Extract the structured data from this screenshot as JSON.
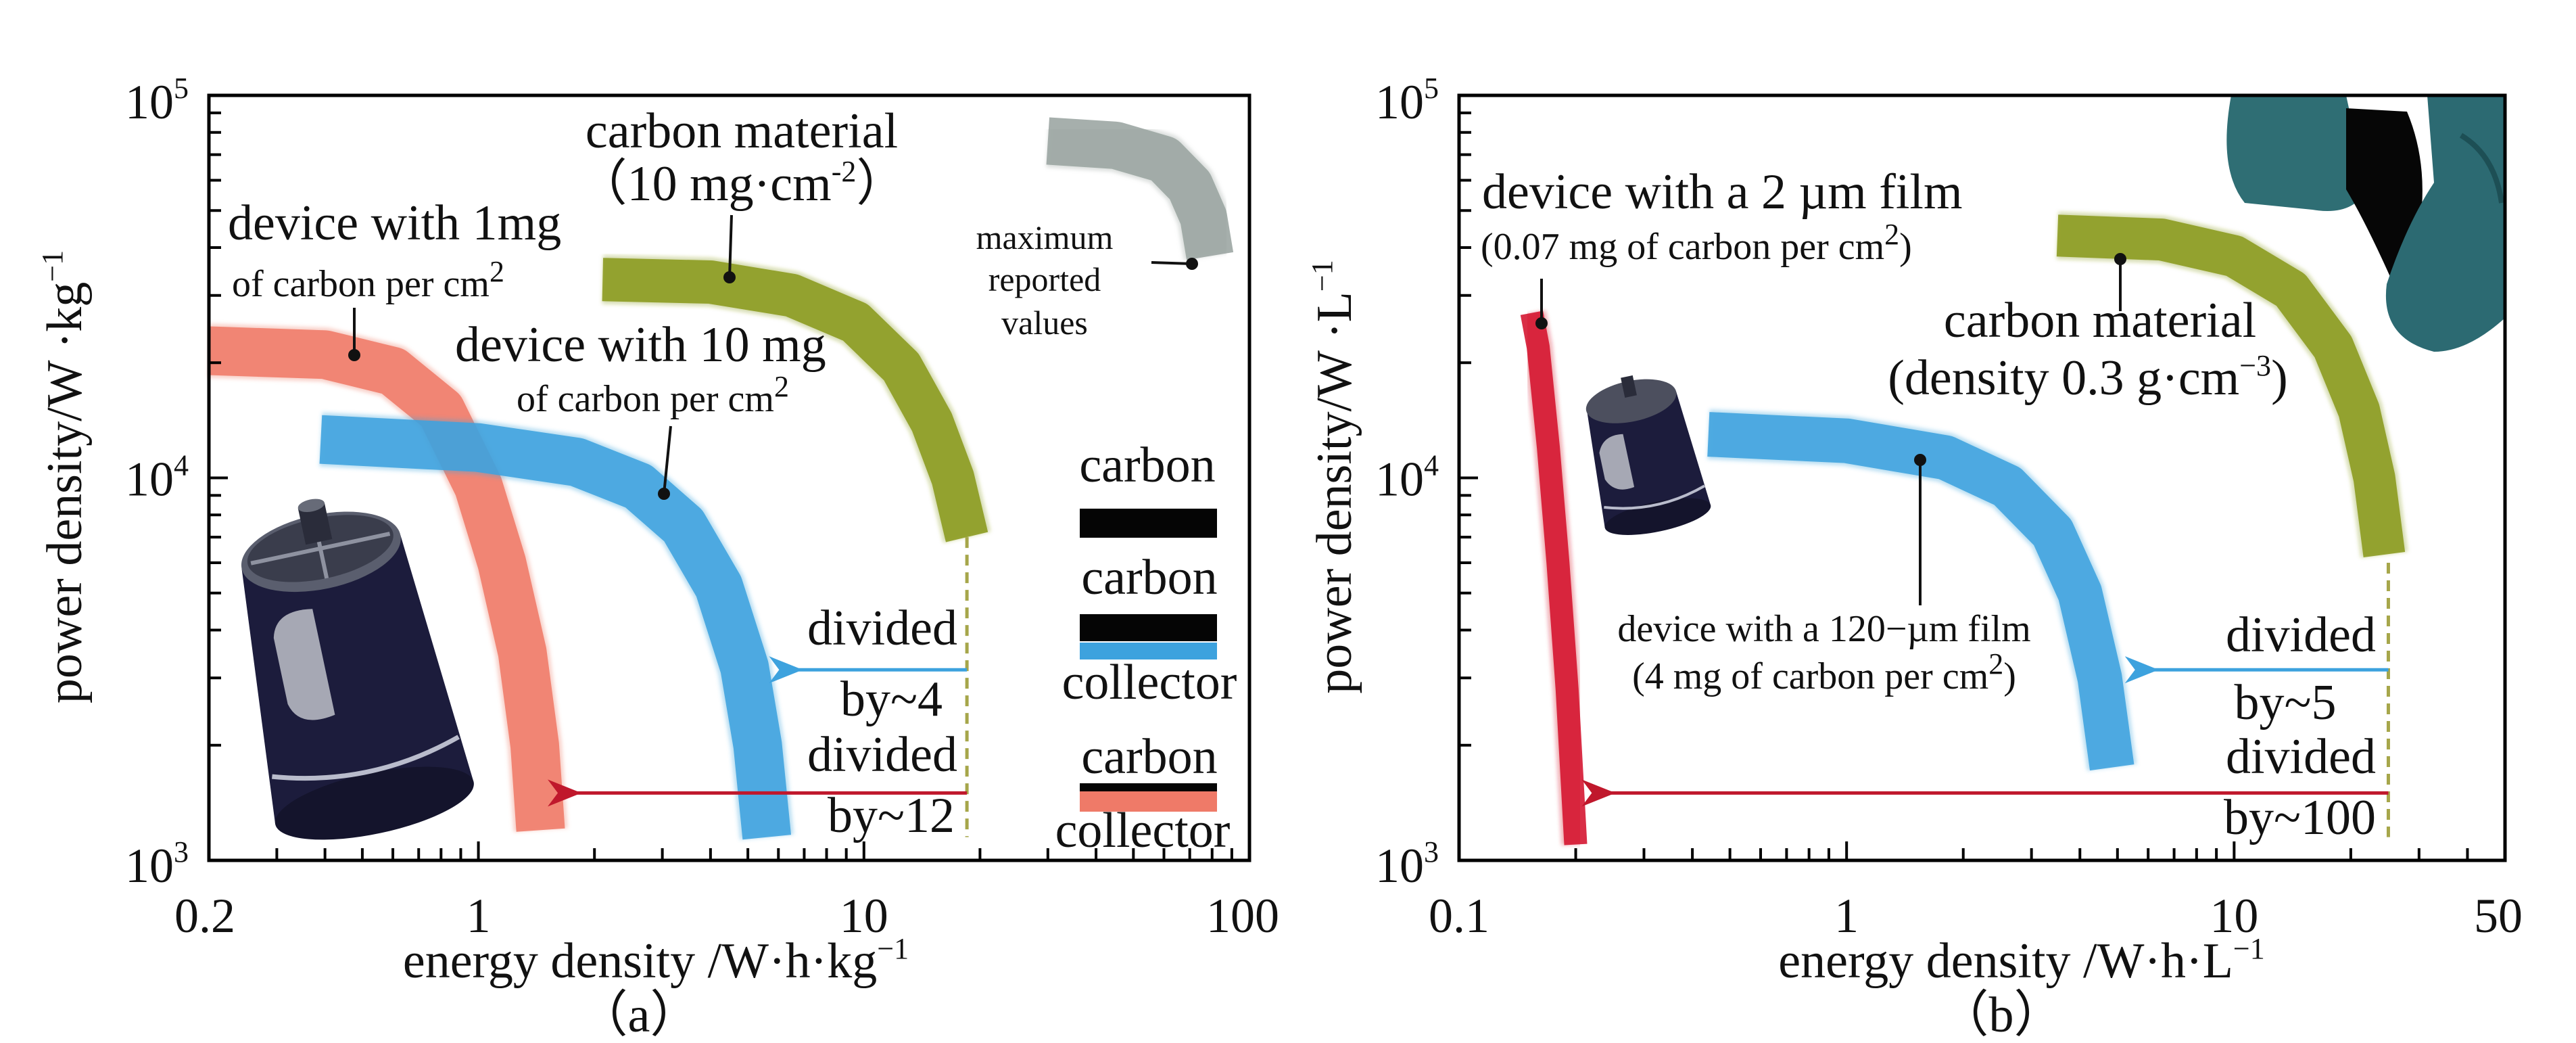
{
  "chart_data": [
    {
      "type": "line",
      "panel_label": "（a）",
      "xlabel": {
        "main": "energy density /W·h·kg",
        "sup": "−1"
      },
      "ylabel": {
        "main": "power density/W ·kg",
        "sup": "−1"
      },
      "xscale": "log",
      "yscale": "log",
      "xlim": [
        0.2,
        100
      ],
      "ylim": [
        1000,
        100000
      ],
      "x_ticks": [
        "0.2",
        "1",
        "10",
        "100"
      ],
      "y_ticks": [
        {
          "base": "10",
          "exp": "3"
        },
        {
          "base": "10",
          "exp": "4"
        },
        {
          "base": "10",
          "exp": "5"
        }
      ],
      "series": [
        {
          "name": "device with 1mg of carbon per cm2",
          "color": "#ef7a68",
          "x": [
            0.2,
            0.4,
            0.6,
            0.8,
            1.0,
            1.15,
            1.3,
            1.4,
            1.45
          ],
          "y": [
            21500,
            21000,
            19000,
            15000,
            9500,
            6000,
            3500,
            2000,
            1200
          ]
        },
        {
          "name": "device with 10 mg of carbon per cm2",
          "color": "#3da2de",
          "x": [
            0.39,
            1.0,
            1.8,
            2.6,
            3.4,
            4.2,
            4.9,
            5.3,
            5.6
          ],
          "y": [
            12600,
            12000,
            11000,
            9500,
            7500,
            5200,
            3200,
            2000,
            1150
          ]
        },
        {
          "name": "carbon material (10 mg·cm-2)",
          "color": "#8a9a1c",
          "x": [
            2.1,
            4.0,
            6.5,
            9.5,
            12.5,
            15.0,
            17.0,
            18.5
          ],
          "y": [
            33000,
            32500,
            30000,
            25500,
            19500,
            14000,
            10000,
            7000
          ]
        },
        {
          "name": "maximum reported values",
          "color": "#9aa4a0",
          "x": [
            30,
            45,
            60,
            70,
            76,
            79
          ],
          "y": [
            76000,
            74000,
            68000,
            58000,
            48000,
            38000
          ]
        }
      ],
      "annotations": {
        "carbon_material": "carbon material",
        "carbon_material_sub": {
          "pre": "（10 mg·cm",
          "sup": "-2",
          "post": "）"
        },
        "device_1mg": "device with 1mg",
        "device_1mg_sub": {
          "pre": "of carbon per cm",
          "sup": "2"
        },
        "device_10mg": "device with 10 mg",
        "device_10mg_sub": {
          "pre": "of carbon per cm",
          "sup": "2"
        },
        "max_reported": [
          "maximum",
          "reported",
          "values"
        ],
        "divided_1": "divided",
        "by_1": "by~4",
        "divided_2": "divided",
        "by_2": "by~12",
        "legend": [
          "carbon",
          "carbon",
          "collector",
          "carbon",
          "collector"
        ]
      },
      "arrows": [
        {
          "color": "#3da2de",
          "from_x": 18.5,
          "to_x": 6.3,
          "y": 3150,
          "factor": 4
        },
        {
          "color": "#c0182c",
          "from_x": 18.5,
          "to_x": 1.68,
          "y": 1500,
          "factor": 12
        }
      ],
      "dashed_x": 18.5
    },
    {
      "type": "line",
      "panel_label": "（b）",
      "xlabel": {
        "main": "energy density /W·h·L",
        "sup": "−1"
      },
      "ylabel": {
        "main": "power density/W ·L",
        "sup": "−1"
      },
      "xscale": "log",
      "yscale": "log",
      "xlim": [
        0.1,
        50
      ],
      "ylim": [
        1000,
        100000
      ],
      "x_ticks": [
        "0.1",
        "1",
        "10",
        "50"
      ],
      "y_ticks": [
        {
          "base": "10",
          "exp": "3"
        },
        {
          "base": "10",
          "exp": "4"
        },
        {
          "base": "10",
          "exp": "5"
        }
      ],
      "series": [
        {
          "name": "device with a 2 µm film (0.07 mg of carbon per cm2)",
          "color": "#d4112c",
          "x": [
            0.154,
            0.16,
            0.17,
            0.18,
            0.19,
            0.2
          ],
          "y": [
            27000,
            22000,
            12000,
            6000,
            2800,
            1100
          ]
        },
        {
          "name": "device with a 120-µm film (4 mg of carbon per cm2)",
          "color": "#3da2de",
          "x": [
            0.44,
            1.0,
            1.8,
            2.6,
            3.4,
            4.0,
            4.5,
            4.84
          ],
          "y": [
            13000,
            12500,
            11300,
            9500,
            7200,
            5000,
            3000,
            1750
          ]
        },
        {
          "name": "carbon material (density 0.3 g·cm−3)",
          "color": "#8a9a1c",
          "x": [
            3.5,
            6.5,
            10,
            14,
            18,
            21,
            23,
            24.4
          ],
          "y": [
            43000,
            42000,
            38000,
            31000,
            22000,
            15000,
            10000,
            6300
          ]
        }
      ],
      "annotations": {
        "device_2um": "device with a 2 µm film",
        "device_2um_sub": {
          "pre": "(0.07 mg of carbon per cm",
          "sup": "2",
          "post": ")"
        },
        "carbon_material": "carbon material",
        "carbon_material_sub": {
          "pre": "(density 0.3 g·cm",
          "sup": "−3",
          "post": ")"
        },
        "device_120um": "device with a 120−µm film",
        "device_120um_sub": {
          "pre": "(4 mg of carbon per cm",
          "sup": "2",
          "post": ")"
        },
        "divided_1": "divided",
        "by_1": "by~5",
        "divided_2": "divided",
        "by_2": "by~100"
      },
      "arrows": [
        {
          "color": "#3da2de",
          "from_x": 25,
          "to_x": 5.8,
          "y": 3150,
          "factor": 5
        },
        {
          "color": "#c0182c",
          "from_x": 25,
          "to_x": 0.23,
          "y": 1500,
          "factor": 100
        }
      ],
      "dashed_x": 25
    }
  ]
}
